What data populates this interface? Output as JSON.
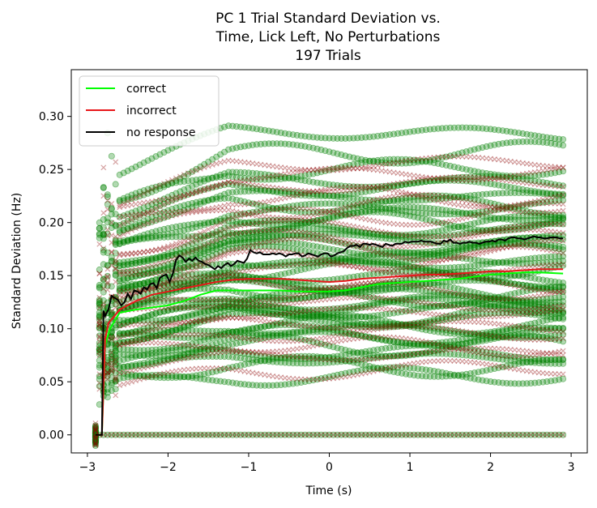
{
  "chart_data": {
    "type": "scatter",
    "title_lines": [
      "PC 1 Trial Standard Deviation vs.",
      "Time, Lick Left, No Perturbations",
      "197 Trials"
    ],
    "xlabel": "Time (s)",
    "ylabel": "Standard Deviation (Hz)",
    "xlim": [
      -3.2,
      3.2
    ],
    "ylim": [
      -0.017,
      0.344
    ],
    "xticks": [
      -3,
      -2,
      -1,
      0,
      1,
      2,
      3
    ],
    "xtick_labels": [
      "−3",
      "−2",
      "−1",
      "0",
      "1",
      "2",
      "3"
    ],
    "yticks": [
      0.0,
      0.05,
      0.1,
      0.15,
      0.2,
      0.25,
      0.3
    ],
    "ytick_labels": [
      "0.00",
      "0.05",
      "0.10",
      "0.15",
      "0.20",
      "0.25",
      "0.30"
    ],
    "grid": false,
    "legend_position": "top-left",
    "series": [
      {
        "name": "correct",
        "kind": "line",
        "color": "#00ff00",
        "x": [
          -2.9,
          -2.82,
          -2.78,
          -2.72,
          -2.6,
          -2.4,
          -2.2,
          -2.0,
          -1.8,
          -1.6,
          -1.4,
          -1.2,
          -1.0,
          -0.8,
          -0.6,
          -0.4,
          -0.2,
          0.0,
          0.2,
          0.4,
          0.6,
          0.8,
          1.0,
          1.2,
          1.4,
          1.6,
          1.8,
          2.0,
          2.2,
          2.4,
          2.6,
          2.9
        ],
        "y": [
          0.0,
          0.0,
          0.085,
          0.1,
          0.115,
          0.118,
          0.12,
          0.122,
          0.126,
          0.132,
          0.136,
          0.136,
          0.136,
          0.136,
          0.136,
          0.135,
          0.135,
          0.135,
          0.136,
          0.139,
          0.142,
          0.143,
          0.144,
          0.145,
          0.146,
          0.147,
          0.149,
          0.151,
          0.152,
          0.153,
          0.153,
          0.152
        ]
      },
      {
        "name": "incorrect",
        "kind": "line",
        "color": "#e8171a",
        "x": [
          -2.9,
          -2.82,
          -2.78,
          -2.74,
          -2.6,
          -2.4,
          -2.2,
          -2.0,
          -1.8,
          -1.6,
          -1.4,
          -1.2,
          -1.0,
          -0.8,
          -0.6,
          -0.4,
          -0.2,
          0.0,
          0.2,
          0.4,
          0.6,
          0.8,
          1.0,
          1.2,
          1.4,
          1.6,
          1.8,
          2.0,
          2.2,
          2.4,
          2.6,
          2.9
        ],
        "y": [
          0.0,
          0.0,
          0.09,
          0.105,
          0.118,
          0.126,
          0.132,
          0.135,
          0.138,
          0.141,
          0.144,
          0.146,
          0.147,
          0.147,
          0.147,
          0.146,
          0.145,
          0.144,
          0.145,
          0.147,
          0.148,
          0.149,
          0.15,
          0.151,
          0.151,
          0.152,
          0.153,
          0.154,
          0.154,
          0.155,
          0.156,
          0.156
        ]
      },
      {
        "name": "no response",
        "kind": "line",
        "color": "#000000",
        "x": [
          -2.9,
          -2.85,
          -2.82,
          -2.8,
          -2.78,
          -2.74,
          -2.7,
          -2.66,
          -2.62,
          -2.58,
          -2.54,
          -2.5,
          -2.46,
          -2.42,
          -2.38,
          -2.34,
          -2.3,
          -2.26,
          -2.22,
          -2.18,
          -2.14,
          -2.1,
          -2.06,
          -2.02,
          -1.98,
          -1.94,
          -1.9,
          -1.86,
          -1.82,
          -1.78,
          -1.74,
          -1.7,
          -1.66,
          -1.62,
          -1.58,
          -1.54,
          -1.5,
          -1.46,
          -1.42,
          -1.38,
          -1.34,
          -1.3,
          -1.26,
          -1.22,
          -1.18,
          -1.14,
          -1.1,
          -1.06,
          -1.02,
          -0.98,
          -0.94,
          -0.9,
          -0.86,
          -0.82,
          -0.78,
          -0.74,
          -0.7,
          -0.66,
          -0.62,
          -0.58,
          -0.54,
          -0.5,
          -0.46,
          -0.42,
          -0.38,
          -0.34,
          -0.3,
          -0.26,
          -0.22,
          -0.18,
          -0.14,
          -0.1,
          -0.06,
          -0.02,
          0.02,
          0.06,
          0.1,
          0.14,
          0.18,
          0.22,
          0.26,
          0.3,
          0.34,
          0.38,
          0.42,
          0.46,
          0.5,
          0.54,
          0.58,
          0.62,
          0.66,
          0.7,
          0.74,
          0.78,
          0.82,
          0.86,
          0.9,
          0.94,
          0.98,
          1.02,
          1.06,
          1.1,
          1.14,
          1.18,
          1.22,
          1.26,
          1.3,
          1.34,
          1.38,
          1.42,
          1.46,
          1.5,
          1.54,
          1.58,
          1.62,
          1.66,
          1.7,
          1.74,
          1.78,
          1.82,
          1.86,
          1.9,
          1.94,
          1.98,
          2.02,
          2.06,
          2.1,
          2.14,
          2.18,
          2.22,
          2.26,
          2.3,
          2.34,
          2.38,
          2.42,
          2.46,
          2.5,
          2.54,
          2.58,
          2.62,
          2.66,
          2.7,
          2.74,
          2.78,
          2.82,
          2.86,
          2.9
        ],
        "y": [
          0.0,
          0.0,
          0.0,
          0.117,
          0.112,
          0.118,
          0.131,
          0.129,
          0.127,
          0.122,
          0.125,
          0.133,
          0.128,
          0.136,
          0.135,
          0.133,
          0.139,
          0.137,
          0.142,
          0.143,
          0.138,
          0.148,
          0.15,
          0.151,
          0.144,
          0.152,
          0.165,
          0.169,
          0.167,
          0.163,
          0.166,
          0.164,
          0.167,
          0.164,
          0.163,
          0.161,
          0.16,
          0.158,
          0.156,
          0.159,
          0.157,
          0.16,
          0.162,
          0.159,
          0.161,
          0.164,
          0.163,
          0.162,
          0.166,
          0.174,
          0.172,
          0.171,
          0.172,
          0.17,
          0.17,
          0.17,
          0.171,
          0.17,
          0.171,
          0.17,
          0.168,
          0.17,
          0.17,
          0.171,
          0.171,
          0.168,
          0.169,
          0.171,
          0.17,
          0.169,
          0.168,
          0.17,
          0.171,
          0.171,
          0.168,
          0.169,
          0.171,
          0.172,
          0.173,
          0.176,
          0.178,
          0.178,
          0.179,
          0.177,
          0.18,
          0.18,
          0.179,
          0.18,
          0.179,
          0.178,
          0.177,
          0.18,
          0.179,
          0.178,
          0.18,
          0.18,
          0.18,
          0.182,
          0.181,
          0.182,
          0.182,
          0.182,
          0.183,
          0.182,
          0.182,
          0.182,
          0.181,
          0.18,
          0.18,
          0.183,
          0.182,
          0.184,
          0.181,
          0.181,
          0.18,
          0.181,
          0.181,
          0.182,
          0.181,
          0.181,
          0.18,
          0.181,
          0.182,
          0.182,
          0.183,
          0.182,
          0.184,
          0.184,
          0.183,
          0.185,
          0.186,
          0.186,
          0.185,
          0.185,
          0.184,
          0.185,
          0.186,
          0.187,
          0.186,
          0.186,
          0.185,
          0.185,
          0.186,
          0.186,
          0.186,
          0.185,
          0.185
        ]
      }
    ],
    "scatter_background": {
      "correct_trials": {
        "color": "#008000",
        "marker": "circle",
        "levels": [
          0.0,
          0.055,
          0.065,
          0.072,
          0.078,
          0.084,
          0.09,
          0.095,
          0.1,
          0.104,
          0.108,
          0.112,
          0.116,
          0.12,
          0.124,
          0.128,
          0.132,
          0.136,
          0.14,
          0.145,
          0.15,
          0.155,
          0.16,
          0.165,
          0.17,
          0.175,
          0.18,
          0.185,
          0.19,
          0.195,
          0.2,
          0.206,
          0.212,
          0.218,
          0.225,
          0.232,
          0.24,
          0.25,
          0.265,
          0.285
        ]
      },
      "incorrect_trials": {
        "color": "#8b0000",
        "marker": "x",
        "levels": [
          0.0,
          0.06,
          0.075,
          0.085,
          0.095,
          0.105,
          0.115,
          0.125,
          0.135,
          0.145,
          0.155,
          0.165,
          0.175,
          0.185,
          0.195,
          0.205,
          0.215,
          0.225,
          0.235,
          0.245,
          0.255
        ]
      }
    }
  }
}
